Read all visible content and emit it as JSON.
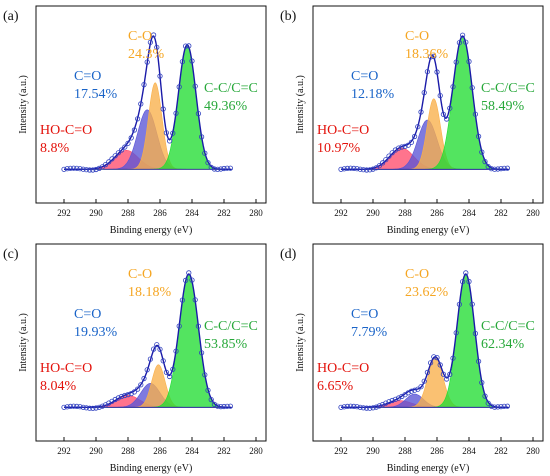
{
  "figure": {
    "type": "xps-c1s-deconvolution-grid"
  },
  "chart_data": [
    {
      "type": "area",
      "panel_label": "(a)",
      "xlabel": "Binding energy (eV)",
      "ylabel": "Intensity (a.u.)",
      "xlim": [
        293,
        280
      ],
      "x_ticks": [
        292,
        290,
        288,
        286,
        284,
        282,
        280
      ],
      "x_reversed": true,
      "components": [
        {
          "name": "HO-C=O",
          "percent": "8.8%",
          "center": 288.1,
          "amplitude": 0.14,
          "sigma": 0.75,
          "color": "#ff4d6d"
        },
        {
          "name": "C=O",
          "percent": "17.54%",
          "center": 286.8,
          "amplitude": 0.44,
          "sigma": 0.6,
          "color": "#5a55d6"
        },
        {
          "name": "C-O",
          "percent": "24.3%",
          "center": 286.3,
          "amplitude": 0.64,
          "sigma": 0.42,
          "color": "#f9b04a"
        },
        {
          "name": "C-C/C=C",
          "percent": "49.36%",
          "center": 284.3,
          "amplitude": 0.92,
          "sigma": 0.55,
          "color": "#22dd33"
        }
      ],
      "label_colors": {
        "C-O": "#f5a623",
        "C=O": "#1a64c8",
        "HO-C=O": "#e3120b",
        "C-C/C=C": "#27a83a"
      }
    },
    {
      "type": "area",
      "panel_label": "(b)",
      "xlabel": "Binding energy (eV)",
      "ylabel": "Intensity (a.u.)",
      "xlim": [
        293,
        280
      ],
      "x_ticks": [
        292,
        290,
        288,
        286,
        284,
        282,
        280
      ],
      "x_reversed": true,
      "components": [
        {
          "name": "HO-C=O",
          "percent": "10.97%",
          "center": 288.2,
          "amplitude": 0.16,
          "sigma": 0.75,
          "color": "#ff4d6d"
        },
        {
          "name": "C=O",
          "percent": "12.18%",
          "center": 286.6,
          "amplitude": 0.37,
          "sigma": 0.6,
          "color": "#5a55d6"
        },
        {
          "name": "C-O",
          "percent": "18.36%",
          "center": 286.2,
          "amplitude": 0.53,
          "sigma": 0.42,
          "color": "#f9b04a"
        },
        {
          "name": "C-C/C=C",
          "percent": "58.49%",
          "center": 284.4,
          "amplitude": 1.0,
          "sigma": 0.6,
          "color": "#22dd33"
        }
      ],
      "label_colors": {
        "C-O": "#f5a623",
        "C=O": "#1a64c8",
        "HO-C=O": "#e3120b",
        "C-C/C=C": "#27a83a"
      }
    },
    {
      "type": "area",
      "panel_label": "(c)",
      "xlabel": "Binding energy (eV)",
      "ylabel": "Intensity (a.u.)",
      "xlim": [
        293,
        280
      ],
      "x_ticks": [
        292,
        290,
        288,
        286,
        284,
        282,
        280
      ],
      "x_reversed": true,
      "components": [
        {
          "name": "HO-C=O",
          "percent": "8.04%",
          "center": 288.0,
          "amplitude": 0.09,
          "sigma": 0.75,
          "color": "#ff4d6d"
        },
        {
          "name": "C=O",
          "percent": "19.93%",
          "center": 286.6,
          "amplitude": 0.18,
          "sigma": 0.6,
          "color": "#5a55d6"
        },
        {
          "name": "C-O",
          "percent": "18.18%",
          "center": 286.1,
          "amplitude": 0.32,
          "sigma": 0.42,
          "color": "#f9b04a"
        },
        {
          "name": "C-C/C=C",
          "percent": "53.85%",
          "center": 284.2,
          "amplitude": 1.0,
          "sigma": 0.6,
          "color": "#22dd33"
        }
      ],
      "label_colors": {
        "C-O": "#f5a623",
        "C=O": "#1a64c8",
        "HO-C=O": "#e3120b",
        "C-C/C=C": "#27a83a"
      }
    },
    {
      "type": "area",
      "panel_label": "(d)",
      "xlabel": "Binding energy (eV)",
      "ylabel": "Intensity (a.u.)",
      "xlim": [
        293,
        280
      ],
      "x_ticks": [
        292,
        290,
        288,
        286,
        284,
        282,
        280
      ],
      "x_reversed": true,
      "components": [
        {
          "name": "HO-C=O",
          "percent": "6.65%",
          "center": 288.3,
          "amplitude": 0.05,
          "sigma": 0.75,
          "color": "#ff4d6d"
        },
        {
          "name": "C=O",
          "percent": "7.79%",
          "center": 287.4,
          "amplitude": 0.1,
          "sigma": 0.55,
          "color": "#5a55d6"
        },
        {
          "name": "C-O",
          "percent": "23.62%",
          "center": 286.1,
          "amplitude": 0.37,
          "sigma": 0.48,
          "color": "#f9b04a"
        },
        {
          "name": "C-C/C=C",
          "percent": "62.34%",
          "center": 284.2,
          "amplitude": 1.0,
          "sigma": 0.55,
          "color": "#22dd33"
        }
      ],
      "label_colors": {
        "C-O": "#f5a623",
        "C=O": "#1a64c8",
        "HO-C=O": "#e3120b",
        "C-C/C=C": "#27a83a"
      }
    }
  ],
  "style": {
    "envelope_color": "#1a1aa8",
    "marker_color": "#2e3fbf",
    "frame_color": "#111111"
  }
}
